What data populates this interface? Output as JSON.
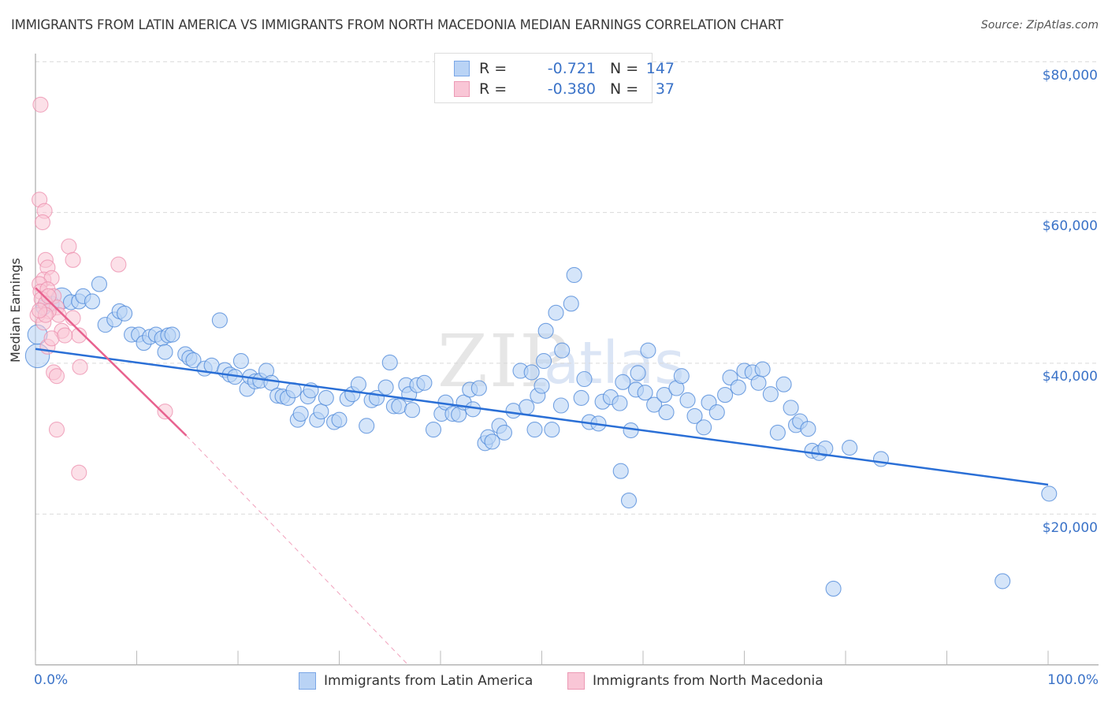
{
  "header": {
    "title": "IMMIGRANTS FROM LATIN AMERICA VS IMMIGRANTS FROM NORTH MACEDONIA MEDIAN EARNINGS CORRELATION CHART",
    "source": "Source: ZipAtlas.com"
  },
  "watermark": {
    "zip": "ZIP",
    "atlas": "atlas"
  },
  "legend": {
    "rows": [
      {
        "r_label": "R =",
        "r_value": "-0.721",
        "n_label": "N =",
        "n_value": "147"
      },
      {
        "r_label": "R =",
        "r_value": "-0.380",
        "n_label": "N =",
        "n_value": "37"
      }
    ]
  },
  "colors": {
    "blue_fill": "#b9d3f5",
    "blue_stroke": "#4a86d8",
    "blue_line": "#2a6fd6",
    "pink_fill": "#f9c6d6",
    "pink_stroke": "#ec8fae",
    "pink_line": "#e8628f",
    "axis_text": "#3b73c8"
  },
  "chart_data": {
    "type": "scatter",
    "title": "IMMIGRANTS FROM LATIN AMERICA VS IMMIGRANTS FROM NORTH MACEDONIA MEDIAN EARNINGS CORRELATION CHART",
    "xlabel": "",
    "ylabel": "Median Earnings",
    "xlim": [
      0,
      100
    ],
    "ylim": [
      0,
      81000
    ],
    "x_tick_labels": [
      "0.0%",
      "100.0%"
    ],
    "x_ticks": [
      0,
      10,
      20,
      30,
      40,
      50,
      60,
      70,
      80,
      90,
      100
    ],
    "y_ticks": [
      20000,
      40000,
      60000,
      80000
    ],
    "y_tick_labels": [
      "$20,000",
      "$40,000",
      "$60,000",
      "$80,000"
    ],
    "grid": "horizontal dashed",
    "legend_position": "bottom-center",
    "series": [
      {
        "name": "Immigrants from Latin America",
        "R": -0.721,
        "N": 147,
        "trend": {
          "x": [
            0,
            100
          ],
          "y": [
            41900,
            23900
          ],
          "style": "solid"
        },
        "points": [
          [
            0.2,
            41000,
            1.6
          ],
          [
            0.2,
            43800,
            1.3
          ],
          [
            0.8,
            47400,
            1.0
          ],
          [
            1.6,
            47900,
            1.0
          ],
          [
            2.6,
            48600,
            1.4
          ],
          [
            3.5,
            48100,
            1.0
          ],
          [
            4.3,
            48200,
            1.0
          ],
          [
            4.7,
            48900,
            1.0
          ],
          [
            5.6,
            48200,
            1.0
          ],
          [
            6.3,
            50500,
            1.0
          ],
          [
            6.9,
            45100,
            1.0
          ],
          [
            7.8,
            45800,
            1.0
          ],
          [
            8.3,
            46900,
            1.0
          ],
          [
            8.8,
            46600,
            1.0
          ],
          [
            9.5,
            43800,
            1.0
          ],
          [
            10.2,
            43800,
            1.0
          ],
          [
            10.7,
            42700,
            1.0
          ],
          [
            11.3,
            43500,
            1.0
          ],
          [
            11.9,
            43800,
            1.0
          ],
          [
            12.5,
            43300,
            1.0
          ],
          [
            13.1,
            43700,
            1.0
          ],
          [
            13.5,
            43800,
            1.0
          ],
          [
            12.8,
            41500,
            1.0
          ],
          [
            14.8,
            41200,
            1.0
          ],
          [
            15.2,
            40700,
            1.0
          ],
          [
            15.6,
            40400,
            1.0
          ],
          [
            16.7,
            39300,
            1.0
          ],
          [
            17.4,
            39700,
            1.0
          ],
          [
            18.2,
            45700,
            1.0
          ],
          [
            18.7,
            39100,
            1.0
          ],
          [
            19.2,
            38500,
            1.0
          ],
          [
            19.7,
            38200,
            1.0
          ],
          [
            20.3,
            40300,
            1.0
          ],
          [
            20.9,
            36600,
            1.0
          ],
          [
            21.2,
            38200,
            1.0
          ],
          [
            21.7,
            37600,
            1.0
          ],
          [
            22.2,
            37700,
            1.0
          ],
          [
            22.8,
            39000,
            1.0
          ],
          [
            23.3,
            37400,
            1.0
          ],
          [
            23.9,
            35700,
            1.0
          ],
          [
            24.4,
            35600,
            1.0
          ],
          [
            24.9,
            35400,
            1.0
          ],
          [
            25.5,
            36400,
            1.0
          ],
          [
            25.9,
            32500,
            1.0
          ],
          [
            26.2,
            33300,
            1.0
          ],
          [
            26.9,
            35600,
            1.0
          ],
          [
            27.2,
            36400,
            1.0
          ],
          [
            27.8,
            32500,
            1.0
          ],
          [
            28.2,
            33600,
            1.0
          ],
          [
            28.7,
            35400,
            1.0
          ],
          [
            29.5,
            32200,
            1.0
          ],
          [
            30.0,
            32500,
            1.0
          ],
          [
            30.8,
            35300,
            1.0
          ],
          [
            31.3,
            35900,
            1.0
          ],
          [
            31.9,
            37200,
            1.0
          ],
          [
            32.7,
            31700,
            1.0
          ],
          [
            33.2,
            35100,
            1.0
          ],
          [
            33.7,
            35400,
            1.0
          ],
          [
            34.6,
            36800,
            1.0
          ],
          [
            35.0,
            40100,
            1.0
          ],
          [
            35.4,
            34300,
            1.0
          ],
          [
            35.9,
            34300,
            1.0
          ],
          [
            36.6,
            37100,
            1.0
          ],
          [
            36.9,
            35900,
            1.0
          ],
          [
            37.2,
            33800,
            1.0
          ],
          [
            37.7,
            37100,
            1.0
          ],
          [
            38.4,
            37400,
            1.0
          ],
          [
            39.3,
            31200,
            1.0
          ],
          [
            40.1,
            33300,
            1.0
          ],
          [
            40.5,
            34800,
            1.0
          ],
          [
            41.2,
            33300,
            1.0
          ],
          [
            41.8,
            33200,
            1.0
          ],
          [
            42.3,
            34800,
            1.0
          ],
          [
            42.9,
            36500,
            1.0
          ],
          [
            43.2,
            33900,
            1.0
          ],
          [
            43.8,
            36700,
            1.0
          ],
          [
            44.4,
            29400,
            1.0
          ],
          [
            44.7,
            30200,
            1.0
          ],
          [
            45.1,
            29600,
            1.0
          ],
          [
            45.8,
            31700,
            1.0
          ],
          [
            46.3,
            30800,
            1.0
          ],
          [
            47.2,
            33700,
            1.0
          ],
          [
            47.9,
            39000,
            1.0
          ],
          [
            48.5,
            34200,
            1.0
          ],
          [
            49.0,
            38800,
            1.0
          ],
          [
            49.3,
            31200,
            1.0
          ],
          [
            49.6,
            35700,
            1.0
          ],
          [
            50.0,
            37000,
            1.0
          ],
          [
            50.2,
            40300,
            1.0
          ],
          [
            50.4,
            44300,
            1.0
          ],
          [
            51.0,
            31200,
            1.0
          ],
          [
            51.4,
            46700,
            1.0
          ],
          [
            51.9,
            34400,
            1.0
          ],
          [
            52.0,
            41700,
            1.0
          ],
          [
            52.9,
            47900,
            1.0
          ],
          [
            53.2,
            51700,
            1.0
          ],
          [
            53.9,
            35400,
            1.0
          ],
          [
            54.2,
            37900,
            1.0
          ],
          [
            54.7,
            32200,
            1.0
          ],
          [
            55.6,
            32000,
            1.0
          ],
          [
            56.0,
            34900,
            1.0
          ],
          [
            56.8,
            35500,
            1.0
          ],
          [
            57.8,
            25700,
            1.0
          ],
          [
            57.7,
            34700,
            1.0
          ],
          [
            58.0,
            37500,
            1.0
          ],
          [
            58.6,
            21800,
            1.0
          ],
          [
            58.8,
            31100,
            1.0
          ],
          [
            59.3,
            36500,
            1.0
          ],
          [
            59.5,
            38700,
            1.0
          ],
          [
            60.2,
            36100,
            1.0
          ],
          [
            60.5,
            41700,
            1.0
          ],
          [
            61.1,
            34500,
            1.0
          ],
          [
            62.1,
            35800,
            1.0
          ],
          [
            62.3,
            33500,
            1.0
          ],
          [
            63.3,
            36700,
            1.0
          ],
          [
            63.8,
            38300,
            1.0
          ],
          [
            64.4,
            35100,
            1.0
          ],
          [
            65.1,
            33000,
            1.0
          ],
          [
            66.0,
            31500,
            1.0
          ],
          [
            66.5,
            34800,
            1.0
          ],
          [
            67.3,
            33500,
            1.0
          ],
          [
            68.1,
            35800,
            1.0
          ],
          [
            68.6,
            38100,
            1.0
          ],
          [
            69.4,
            36800,
            1.0
          ],
          [
            70.0,
            39000,
            1.0
          ],
          [
            70.8,
            38800,
            1.0
          ],
          [
            71.4,
            37400,
            1.0
          ],
          [
            71.8,
            39200,
            1.0
          ],
          [
            72.6,
            35900,
            1.0
          ],
          [
            73.3,
            30800,
            1.0
          ],
          [
            73.9,
            37200,
            1.0
          ],
          [
            74.6,
            34100,
            1.0
          ],
          [
            75.1,
            31800,
            1.0
          ],
          [
            75.5,
            32300,
            1.0
          ],
          [
            76.3,
            31300,
            1.0
          ],
          [
            76.7,
            28400,
            1.0
          ],
          [
            77.4,
            28100,
            1.0
          ],
          [
            78.0,
            28700,
            1.0
          ],
          [
            78.8,
            10100,
            1.0
          ],
          [
            80.4,
            28800,
            1.0
          ],
          [
            83.5,
            27300,
            1.0
          ],
          [
            95.5,
            11100,
            1.0
          ],
          [
            100.1,
            22700,
            1.0
          ]
        ]
      },
      {
        "name": "Immigrants from North Macedonia",
        "R": -0.38,
        "N": 37,
        "trend": {
          "x": [
            0,
            14.9
          ],
          "y": [
            50000,
            30400
          ],
          "style": "solid",
          "extension": {
            "x": [
              14.9,
              36.8
            ],
            "y": [
              30400,
              0
            ],
            "style": "dashed"
          }
        },
        "points": [
          [
            0.5,
            74300
          ],
          [
            0.4,
            61700
          ],
          [
            0.9,
            60200
          ],
          [
            0.7,
            58700
          ],
          [
            3.3,
            55500
          ],
          [
            3.7,
            53700
          ],
          [
            8.2,
            53100
          ],
          [
            1.0,
            53700
          ],
          [
            1.2,
            52700
          ],
          [
            0.8,
            51100
          ],
          [
            1.6,
            51300
          ],
          [
            0.4,
            50500
          ],
          [
            0.5,
            49500
          ],
          [
            1.2,
            49800
          ],
          [
            1.8,
            48900
          ],
          [
            0.6,
            48500
          ],
          [
            1.0,
            47900
          ],
          [
            2.1,
            47400
          ],
          [
            2.3,
            46400
          ],
          [
            1.3,
            46900
          ],
          [
            0.2,
            46400
          ],
          [
            0.8,
            45400
          ],
          [
            2.6,
            44300
          ],
          [
            3.7,
            46000
          ],
          [
            4.3,
            43700
          ],
          [
            1.2,
            42200
          ],
          [
            1.8,
            38800
          ],
          [
            2.1,
            38300
          ],
          [
            4.4,
            39500
          ],
          [
            12.8,
            33600
          ],
          [
            2.1,
            31200
          ],
          [
            4.3,
            25500
          ],
          [
            1.3,
            48900
          ],
          [
            1.0,
            46400
          ],
          [
            1.6,
            43300
          ],
          [
            0.4,
            47000
          ],
          [
            2.9,
            43700
          ]
        ]
      }
    ]
  },
  "bottom_legend": {
    "items": [
      {
        "label": "Immigrants from Latin America"
      },
      {
        "label": "Immigrants from North Macedonia"
      }
    ]
  },
  "axis_labels": {
    "ylabel": "Median Earnings",
    "x_left": "0.0%",
    "x_right": "100.0%",
    "y80": "$80,000",
    "y60": "$60,000",
    "y40": "$40,000",
    "y20": "$20,000"
  }
}
